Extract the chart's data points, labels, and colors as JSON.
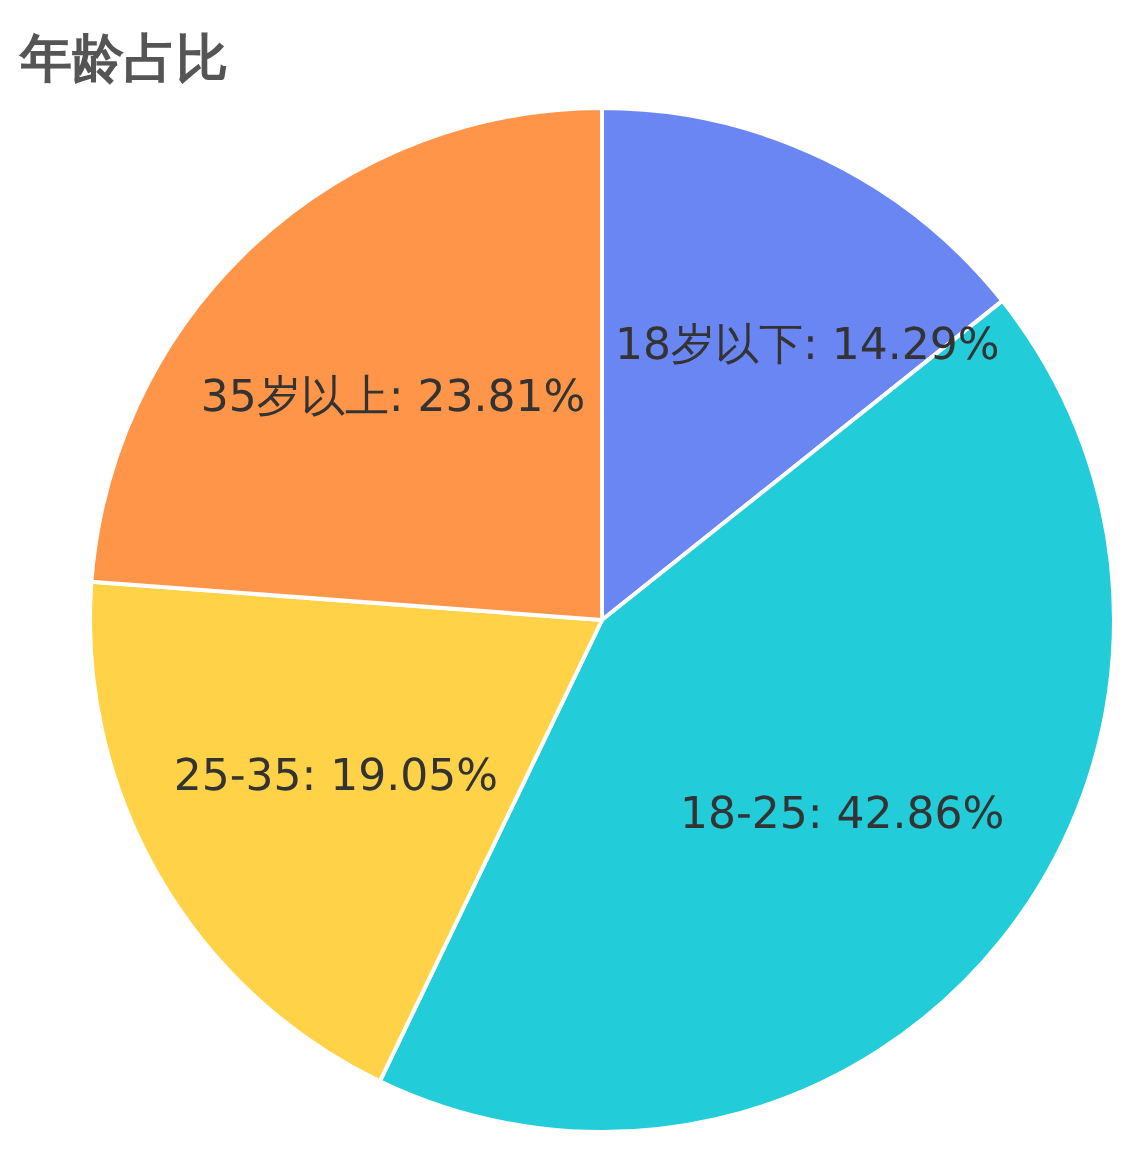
{
  "chart_data": {
    "type": "pie",
    "title": "年龄占比",
    "categories": [
      "18岁以下",
      "18-25",
      "25-35",
      "35岁以上"
    ],
    "values": [
      14.29,
      42.86,
      19.05,
      23.81
    ],
    "value_labels": [
      ": 14.29%",
      ": 42.86%",
      ": 19.05%",
      ": 23.81%"
    ],
    "colors": [
      "#6a86f3",
      "#22ccd9",
      "#ffd247",
      "#ff9549"
    ]
  }
}
